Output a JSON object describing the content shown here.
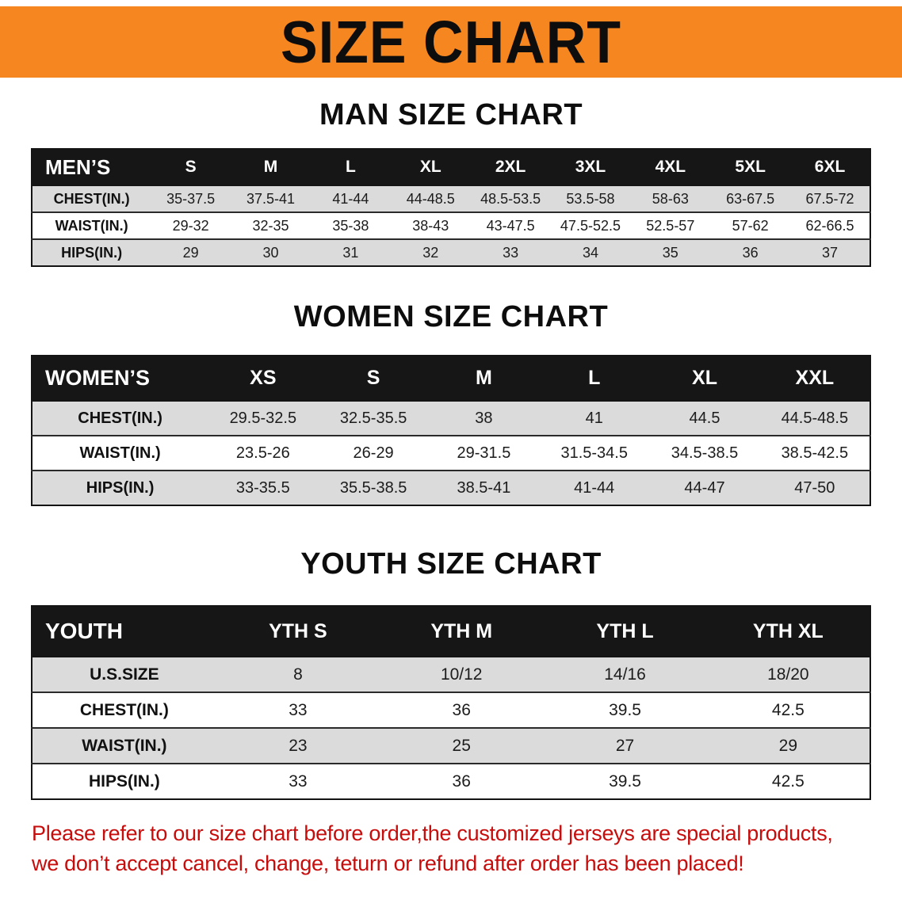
{
  "banner": {
    "title": "SIZE CHART"
  },
  "colors": {
    "banner_bg": "#F6861F",
    "table_header_bg": "#161616",
    "row_stripe": "#DBDBDB",
    "disclaimer_red": "#C70C0C"
  },
  "chart_data": [
    {
      "type": "table",
      "title": "MAN SIZE CHART",
      "header": [
        "MEN’S",
        "S",
        "M",
        "L",
        "XL",
        "2XL",
        "3XL",
        "4XL",
        "5XL",
        "6XL"
      ],
      "rows": [
        [
          "CHEST(IN.)",
          "35-37.5",
          "37.5-41",
          "41-44",
          "44-48.5",
          "48.5-53.5",
          "53.5-58",
          "58-63",
          "63-67.5",
          "67.5-72"
        ],
        [
          "WAIST(IN.)",
          "29-32",
          "32-35",
          "35-38",
          "38-43",
          "43-47.5",
          "47.5-52.5",
          "52.5-57",
          "57-62",
          "62-66.5"
        ],
        [
          "HIPS(IN.)",
          "29",
          "30",
          "31",
          "32",
          "33",
          "34",
          "35",
          "36",
          "37"
        ]
      ]
    },
    {
      "type": "table",
      "title": "WOMEN SIZE CHART",
      "header": [
        "WOMEN’S",
        "XS",
        "S",
        "M",
        "L",
        "XL",
        "XXL"
      ],
      "rows": [
        [
          "CHEST(IN.)",
          "29.5-32.5",
          "32.5-35.5",
          "38",
          "41",
          "44.5",
          "44.5-48.5"
        ],
        [
          "WAIST(IN.)",
          "23.5-26",
          "26-29",
          "29-31.5",
          "31.5-34.5",
          "34.5-38.5",
          "38.5-42.5"
        ],
        [
          "HIPS(IN.)",
          "33-35.5",
          "35.5-38.5",
          "38.5-41",
          "41-44",
          "44-47",
          "47-50"
        ]
      ]
    },
    {
      "type": "table",
      "title": "YOUTH SIZE CHART",
      "header": [
        "YOUTH",
        "YTH S",
        "YTH M",
        "YTH L",
        "YTH XL"
      ],
      "rows": [
        [
          "U.S.SIZE",
          "8",
          "10/12",
          "14/16",
          "18/20"
        ],
        [
          "CHEST(IN.)",
          "33",
          "36",
          "39.5",
          "42.5"
        ],
        [
          "WAIST(IN.)",
          "23",
          "25",
          "27",
          "29"
        ],
        [
          "HIPS(IN.)",
          "33",
          "36",
          "39.5",
          "42.5"
        ]
      ]
    }
  ],
  "disclaimer": {
    "line1": "Please refer to our size chart before order,the customized jerseys are special products,",
    "line2": "we don’t accept cancel, change, teturn or refund after order has been placed!"
  }
}
